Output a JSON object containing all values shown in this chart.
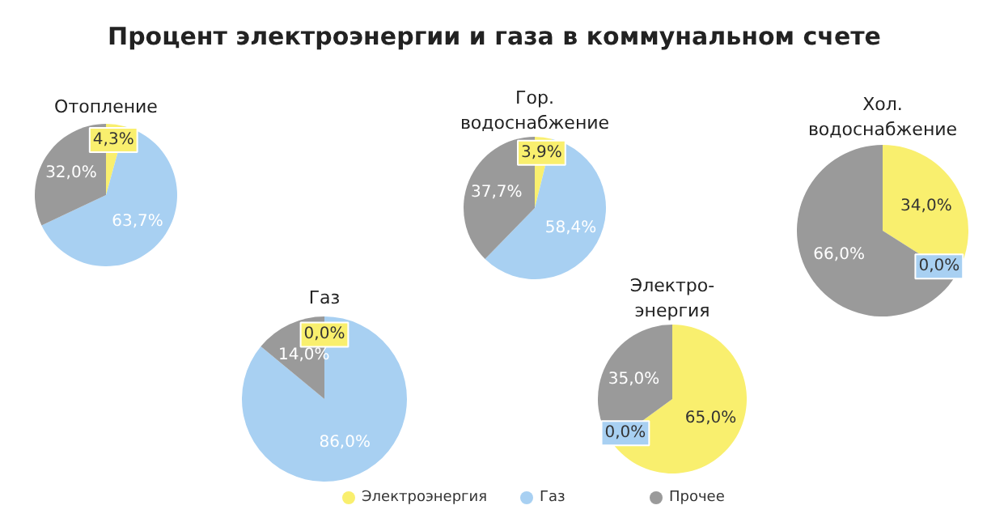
{
  "chart_data": [
    {
      "type": "other",
      "title": "Процент электроэнергии и газа в коммунальном счете"
    },
    {
      "type": "pie",
      "title": "Отопление",
      "categories": [
        "Электроэнергия",
        "Газ",
        "Прочее"
      ],
      "values": [
        4.3,
        63.7,
        32.0
      ],
      "value_labels": [
        "4,3%",
        "63,7%",
        "32,0%"
      ],
      "colors": [
        "#f9ef6e",
        "#a8d0f2",
        "#9a9a9a"
      ],
      "legend": "bottom"
    },
    {
      "type": "pie",
      "title": "Газ",
      "values": [
        0.0,
        86.0,
        14.0
      ],
      "value_labels": [
        "0,0%",
        "86,0%",
        "14,0%"
      ],
      "colors": [
        "#f9ef6e",
        "#a8d0f2",
        "#9a9a9a"
      ]
    },
    {
      "type": "pie",
      "title": "Гор.\nводоснабжение",
      "values": [
        3.9,
        58.4,
        37.7
      ],
      "value_labels": [
        "3,9%",
        "58,4%",
        "37,7%"
      ],
      "colors": [
        "#f9ef6e",
        "#a8d0f2",
        "#9a9a9a"
      ]
    },
    {
      "type": "pie",
      "title": "Электро-\nэнергия",
      "values": [
        65.0,
        0.0,
        35.0
      ],
      "value_labels": [
        "65,0%",
        "0,0%",
        "35,0%"
      ],
      "colors": [
        "#f9ef6e",
        "#a8d0f2",
        "#9a9a9a"
      ]
    },
    {
      "type": "pie",
      "title": "Хол.\nводоснабжение",
      "values": [
        34.0,
        0.0,
        66.0
      ],
      "value_labels": [
        "34,0%",
        "0,0%",
        "66,0%"
      ],
      "colors": [
        "#f9ef6e",
        "#a8d0f2",
        "#9a9a9a"
      ]
    }
  ]
}
